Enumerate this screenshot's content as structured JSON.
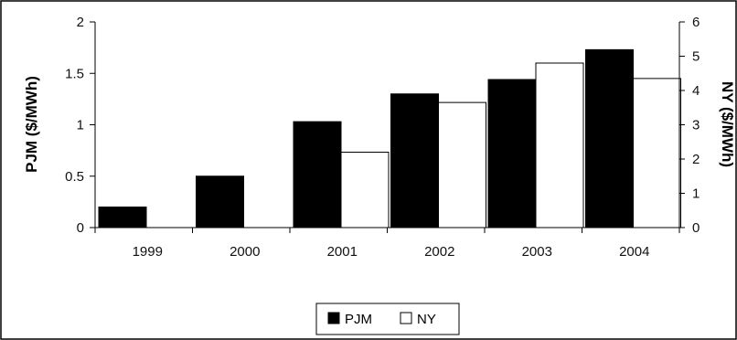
{
  "chart_data": {
    "type": "bar",
    "categories": [
      "1999",
      "2000",
      "2001",
      "2002",
      "2003",
      "2004"
    ],
    "series": [
      {
        "name": "PJM",
        "axis": "left",
        "color": "#000000",
        "values": [
          0.2,
          0.5,
          1.03,
          1.3,
          1.44,
          1.73
        ]
      },
      {
        "name": "NY",
        "axis": "right",
        "color": "#ffffff",
        "values": [
          null,
          null,
          2.2,
          3.65,
          4.8,
          4.35
        ]
      }
    ],
    "ylabel": "PJM ($/MWh)",
    "y2label": "NY ($/MWh)",
    "ylim": [
      0,
      2
    ],
    "y2lim": [
      0,
      6
    ],
    "yticks": [
      "0",
      "0.5",
      "1",
      "1.5",
      "2"
    ],
    "y2ticks": [
      "0",
      "1",
      "2",
      "3",
      "4",
      "5",
      "6"
    ],
    "legend": "bottom-center",
    "grid": false
  }
}
